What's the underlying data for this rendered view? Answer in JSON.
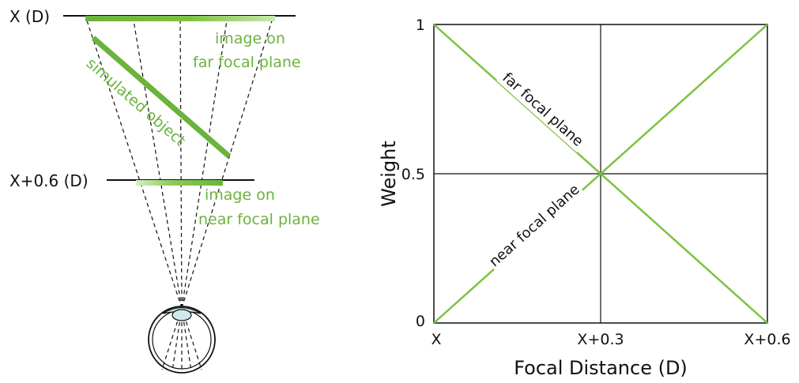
{
  "left_diagram": {
    "far_plane_label": "X (D)",
    "near_plane_label": "X+0.6 (D)",
    "far_image_label_line1": "image on",
    "far_image_label_line2": "far focal plane",
    "near_image_label_line1": "image on",
    "near_image_label_line2": "near focal plane",
    "object_label": "simulated object"
  },
  "chart_data": {
    "type": "line",
    "xlabel": "Focal Distance (D)",
    "ylabel": "Weight",
    "x_tick_labels": [
      "X",
      "X+0.3",
      "X+0.6"
    ],
    "y_tick_labels": [
      "0",
      "0.5",
      "1"
    ],
    "x": [
      0,
      0.3,
      0.6
    ],
    "xlim": [
      0,
      0.6
    ],
    "ylim": [
      0,
      1
    ],
    "grid": "center lines at x=0.3 and y=0.5",
    "series": [
      {
        "name": "far focal plane",
        "x": [
          0,
          0.6
        ],
        "values": [
          1,
          0
        ]
      },
      {
        "name": "near focal plane",
        "x": [
          0,
          0.6
        ],
        "values": [
          0,
          1
        ]
      }
    ],
    "line_color": "#7dc242"
  },
  "colors": {
    "green": "#6bb33c",
    "green_light": "#b9e09a",
    "eye_blue": "#cfe9ef"
  }
}
